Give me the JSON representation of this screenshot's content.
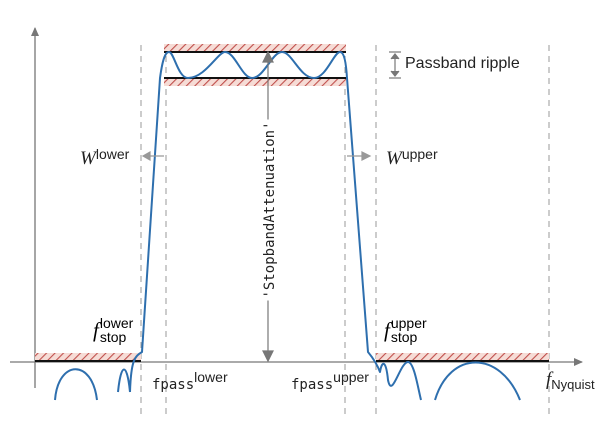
{
  "labels": {
    "passband_ripple": "Passband ripple",
    "w_lower_base": "W",
    "w_lower_sup": "lower",
    "w_upper_base": "W",
    "w_upper_sup": "upper",
    "stopband_attenuation": "'StopbandAttenuation'",
    "fstop_lower_base": "f",
    "fstop_lower_sup": "lower",
    "fstop_lower_sub": "stop",
    "fstop_upper_base": "f",
    "fstop_upper_sup": "upper",
    "fstop_upper_sub": "stop",
    "fpass_lower_base": "fpass",
    "fpass_lower_sup": "lower",
    "fpass_upper_base": "fpass",
    "fpass_upper_sup": "upper",
    "fnyquist_base": "f",
    "fnyquist_sub": "Nyquist"
  },
  "colors": {
    "line": "#111111",
    "axis": "#777777",
    "hatch": "#c0504d",
    "guide": "#999999",
    "curve": "#2e6fae"
  }
}
